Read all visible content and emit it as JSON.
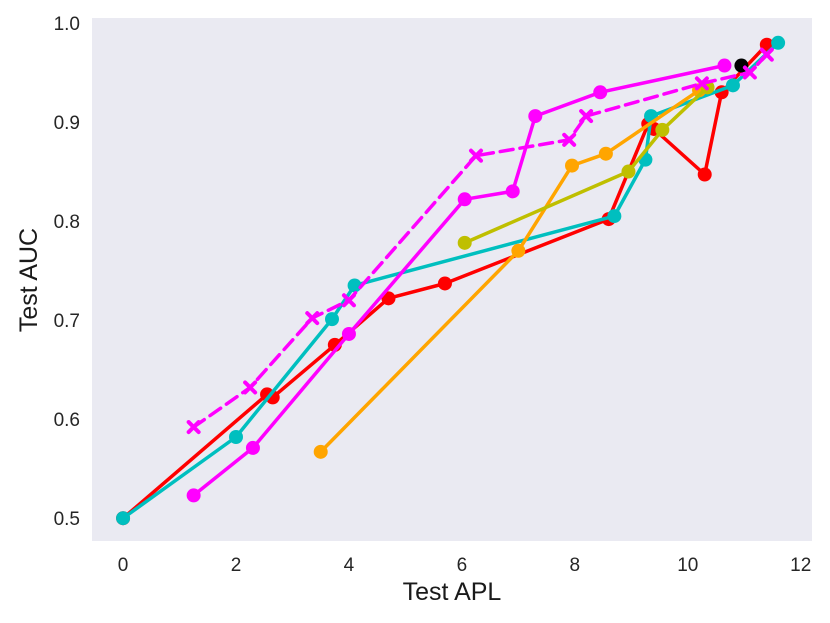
{
  "chart_data": {
    "type": "line",
    "title": "",
    "xlabel": "Test APL",
    "ylabel": "Test AUC",
    "xlim": [
      -0.55,
      12.2
    ],
    "ylim": [
      0.477,
      1.005
    ],
    "xticks": [
      0,
      2,
      4,
      6,
      8,
      10,
      12
    ],
    "xtick_labels": [
      "0",
      "2",
      "4",
      "6",
      "8",
      "10",
      "12"
    ],
    "yticks": [
      0.5,
      0.6,
      0.7,
      0.8,
      0.9,
      1.0
    ],
    "ytick_labels": [
      "0.5",
      "0.6",
      "0.7",
      "0.8",
      "0.9",
      "1.0"
    ],
    "grid": false,
    "background": "#eaeaf2",
    "series": [
      {
        "color": "#ff0000",
        "marker": "circle",
        "dash": "solid",
        "x": [
          0,
          2.55,
          2.65,
          3.75,
          4.7,
          5.7,
          8.6,
          9.3,
          9.4,
          10.3,
          10.6,
          11.4
        ],
        "y": [
          0.5,
          0.625,
          0.622,
          0.675,
          0.722,
          0.737,
          0.802,
          0.898,
          0.893,
          0.847,
          0.93,
          0.978
        ]
      },
      {
        "color": "#00bfbf",
        "marker": "circle",
        "dash": "solid",
        "x": [
          0,
          2.0,
          3.7,
          4.1,
          8.7,
          9.25,
          9.35,
          10.8,
          11.6
        ],
        "y": [
          0.5,
          0.582,
          0.701,
          0.735,
          0.805,
          0.862,
          0.906,
          0.937,
          0.98
        ]
      },
      {
        "color": "#ff00ff",
        "marker": "circle",
        "dash": "solid",
        "x": [
          1.25,
          2.3,
          4.0,
          6.05,
          6.9,
          7.3,
          8.45,
          10.65
        ],
        "y": [
          0.523,
          0.571,
          0.686,
          0.822,
          0.83,
          0.906,
          0.93,
          0.957
        ]
      },
      {
        "color": "#ffa500",
        "marker": "circle",
        "dash": "solid",
        "x": [
          3.5,
          7.0,
          7.95,
          8.55,
          10.2
        ],
        "y": [
          0.567,
          0.77,
          0.856,
          0.868,
          0.932
        ]
      },
      {
        "color": "#bfbf00",
        "marker": "circle",
        "dash": "solid",
        "x": [
          6.05,
          8.95,
          9.55,
          10.35
        ],
        "y": [
          0.778,
          0.85,
          0.892,
          0.935
        ]
      },
      {
        "color": "#000000",
        "marker": "circle",
        "dash": "solid",
        "x": [
          10.95
        ],
        "y": [
          0.957
        ]
      },
      {
        "color": "#ff00ff",
        "marker": "x",
        "dash": "dashed",
        "x": [
          1.25,
          2.25,
          3.35,
          4.0,
          6.25,
          7.9,
          8.2,
          10.25,
          11.1,
          11.4
        ],
        "y": [
          0.592,
          0.632,
          0.702,
          0.72,
          0.866,
          0.882,
          0.906,
          0.939,
          0.95,
          0.968
        ]
      }
    ]
  }
}
